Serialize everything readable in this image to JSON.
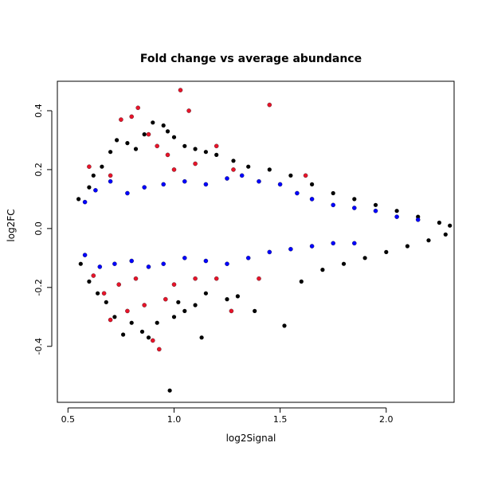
{
  "chart_data": {
    "type": "scatter",
    "title": "Fold change vs average abundance",
    "xlabel": "log2Signal",
    "ylabel": "log2FC",
    "xlim": [
      0.45,
      2.32
    ],
    "ylim": [
      -0.59,
      0.5
    ],
    "x_ticks": [
      0.5,
      1.0,
      1.5,
      2.0
    ],
    "x_tick_labels": [
      "0.5",
      "1.0",
      "1.5",
      "2.0"
    ],
    "y_ticks": [
      -0.4,
      -0.2,
      0.0,
      0.2,
      0.4
    ],
    "y_tick_labels": [
      "-0.4",
      "-0.2",
      "0.0",
      "0.2",
      "0.4"
    ],
    "grid": false,
    "legend": "none",
    "series": [
      {
        "color": "#000000",
        "points": [
          [
            0.55,
            0.1
          ],
          [
            0.6,
            0.14
          ],
          [
            0.62,
            0.18
          ],
          [
            0.66,
            0.21
          ],
          [
            0.7,
            0.26
          ],
          [
            0.73,
            0.3
          ],
          [
            0.78,
            0.29
          ],
          [
            0.82,
            0.27
          ],
          [
            0.86,
            0.32
          ],
          [
            0.9,
            0.36
          ],
          [
            0.95,
            0.35
          ],
          [
            0.97,
            0.33
          ],
          [
            1.0,
            0.31
          ],
          [
            1.05,
            0.28
          ],
          [
            1.1,
            0.27
          ],
          [
            1.15,
            0.26
          ],
          [
            1.2,
            0.25
          ],
          [
            1.28,
            0.23
          ],
          [
            1.35,
            0.21
          ],
          [
            1.45,
            0.2
          ],
          [
            1.55,
            0.18
          ],
          [
            1.65,
            0.15
          ],
          [
            1.75,
            0.12
          ],
          [
            1.85,
            0.1
          ],
          [
            1.95,
            0.08
          ],
          [
            2.05,
            0.06
          ],
          [
            2.15,
            0.04
          ],
          [
            2.25,
            0.02
          ],
          [
            2.3,
            0.01
          ],
          [
            0.56,
            -0.12
          ],
          [
            0.6,
            -0.18
          ],
          [
            0.64,
            -0.22
          ],
          [
            0.68,
            -0.25
          ],
          [
            0.72,
            -0.3
          ],
          [
            0.76,
            -0.36
          ],
          [
            0.8,
            -0.32
          ],
          [
            0.85,
            -0.35
          ],
          [
            0.88,
            -0.37
          ],
          [
            0.92,
            -0.32
          ],
          [
            1.0,
            -0.3
          ],
          [
            1.02,
            -0.25
          ],
          [
            1.05,
            -0.28
          ],
          [
            1.1,
            -0.26
          ],
          [
            1.15,
            -0.22
          ],
          [
            1.25,
            -0.24
          ],
          [
            1.3,
            -0.23
          ],
          [
            1.38,
            -0.28
          ],
          [
            1.52,
            -0.33
          ],
          [
            1.6,
            -0.18
          ],
          [
            1.7,
            -0.14
          ],
          [
            1.8,
            -0.12
          ],
          [
            1.9,
            -0.1
          ],
          [
            2.0,
            -0.08
          ],
          [
            2.1,
            -0.06
          ],
          [
            2.2,
            -0.04
          ],
          [
            2.28,
            -0.02
          ],
          [
            1.13,
            -0.37
          ],
          [
            0.98,
            -0.55
          ]
        ]
      },
      {
        "color": "#0000ff",
        "points": [
          [
            0.58,
            0.09
          ],
          [
            0.63,
            0.13
          ],
          [
            0.7,
            0.16
          ],
          [
            0.78,
            0.12
          ],
          [
            0.86,
            0.14
          ],
          [
            0.95,
            0.15
          ],
          [
            1.05,
            0.16
          ],
          [
            1.15,
            0.15
          ],
          [
            1.25,
            0.17
          ],
          [
            1.32,
            0.18
          ],
          [
            1.4,
            0.16
          ],
          [
            1.5,
            0.15
          ],
          [
            1.58,
            0.12
          ],
          [
            1.65,
            0.1
          ],
          [
            1.75,
            0.08
          ],
          [
            1.85,
            0.07
          ],
          [
            1.95,
            0.06
          ],
          [
            2.05,
            0.04
          ],
          [
            2.15,
            0.03
          ],
          [
            0.58,
            -0.09
          ],
          [
            0.65,
            -0.13
          ],
          [
            0.72,
            -0.12
          ],
          [
            0.8,
            -0.11
          ],
          [
            0.88,
            -0.13
          ],
          [
            0.95,
            -0.12
          ],
          [
            1.05,
            -0.1
          ],
          [
            1.15,
            -0.11
          ],
          [
            1.25,
            -0.12
          ],
          [
            1.35,
            -0.1
          ],
          [
            1.45,
            -0.08
          ],
          [
            1.55,
            -0.07
          ],
          [
            1.65,
            -0.06
          ],
          [
            1.75,
            -0.05
          ],
          [
            1.85,
            -0.05
          ]
        ]
      },
      {
        "color": "#e8142a",
        "points": [
          [
            0.6,
            0.21
          ],
          [
            0.7,
            0.18
          ],
          [
            0.75,
            0.37
          ],
          [
            0.8,
            0.38
          ],
          [
            0.83,
            0.41
          ],
          [
            0.88,
            0.32
          ],
          [
            0.92,
            0.28
          ],
          [
            0.97,
            0.25
          ],
          [
            1.0,
            0.2
          ],
          [
            1.03,
            0.47
          ],
          [
            1.07,
            0.4
          ],
          [
            1.1,
            0.22
          ],
          [
            1.2,
            0.28
          ],
          [
            1.28,
            0.2
          ],
          [
            1.45,
            0.42
          ],
          [
            1.62,
            0.18
          ],
          [
            0.62,
            -0.16
          ],
          [
            0.67,
            -0.22
          ],
          [
            0.7,
            -0.31
          ],
          [
            0.74,
            -0.19
          ],
          [
            0.78,
            -0.28
          ],
          [
            0.82,
            -0.17
          ],
          [
            0.86,
            -0.26
          ],
          [
            0.9,
            -0.38
          ],
          [
            0.93,
            -0.41
          ],
          [
            0.96,
            -0.24
          ],
          [
            1.0,
            -0.19
          ],
          [
            1.1,
            -0.17
          ],
          [
            1.2,
            -0.17
          ],
          [
            1.27,
            -0.28
          ],
          [
            1.4,
            -0.17
          ]
        ]
      }
    ]
  }
}
